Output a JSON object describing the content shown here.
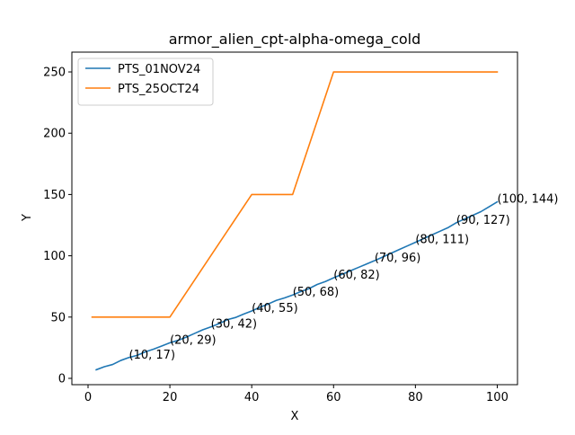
{
  "chart_data": {
    "type": "line",
    "title": "armor_alien_cpt-alpha-omega_cold",
    "xlabel": "X",
    "ylabel": "Y",
    "xlim": [
      -3.95,
      104.95
    ],
    "ylim": [
      -5.15,
      266.15
    ],
    "xticks": [
      0,
      20,
      40,
      60,
      80,
      100
    ],
    "yticks": [
      0,
      50,
      100,
      150,
      200,
      250
    ],
    "grid": false,
    "legend_position": "top-left",
    "series": [
      {
        "name": "PTS_01NOV24",
        "color": "#1f77b4",
        "x": [
          2,
          4,
          6,
          8,
          10,
          12,
          14,
          16,
          18,
          20,
          22,
          24,
          26,
          28,
          30,
          32,
          34,
          36,
          38,
          40,
          42,
          44,
          46,
          48,
          50,
          52,
          54,
          56,
          58,
          60,
          62,
          64,
          66,
          68,
          70,
          72,
          74,
          76,
          78,
          80,
          82,
          84,
          86,
          88,
          90,
          92,
          94,
          96,
          98,
          100
        ],
        "y": [
          7,
          9.5,
          11.3,
          14.6,
          17,
          18.8,
          21.6,
          23.8,
          26.4,
          29,
          31,
          33.6,
          36.6,
          39.6,
          42,
          44.6,
          47.8,
          49.6,
          52.4,
          55,
          58,
          60.6,
          63.6,
          65.6,
          68,
          70.8,
          73.2,
          76.6,
          79,
          82,
          84.8,
          87.6,
          90.4,
          93.2,
          96,
          99,
          102,
          105,
          108,
          111,
          114,
          117,
          120,
          123,
          127,
          130,
          133,
          136,
          140,
          144
        ]
      },
      {
        "name": "PTS_25OCT24",
        "color": "#ff7f0e",
        "x": [
          1,
          10,
          20,
          30,
          40,
          50,
          60,
          70,
          80,
          90,
          100
        ],
        "y": [
          50,
          50,
          50,
          100,
          150,
          150,
          250,
          250,
          250,
          250,
          250
        ]
      }
    ],
    "annotations": [
      {
        "text": "(10, 17)",
        "x": 10,
        "y": 17
      },
      {
        "text": "(20, 29)",
        "x": 20,
        "y": 29
      },
      {
        "text": "(30, 42)",
        "x": 30,
        "y": 42
      },
      {
        "text": "(40, 55)",
        "x": 40,
        "y": 55
      },
      {
        "text": "(50, 68)",
        "x": 50,
        "y": 68
      },
      {
        "text": "(60, 82)",
        "x": 60,
        "y": 82
      },
      {
        "text": "(70, 96)",
        "x": 70,
        "y": 96
      },
      {
        "text": "(80, 111)",
        "x": 80,
        "y": 111
      },
      {
        "text": "(90, 127)",
        "x": 90,
        "y": 127
      },
      {
        "text": "(100, 144)",
        "x": 100,
        "y": 144
      }
    ]
  }
}
